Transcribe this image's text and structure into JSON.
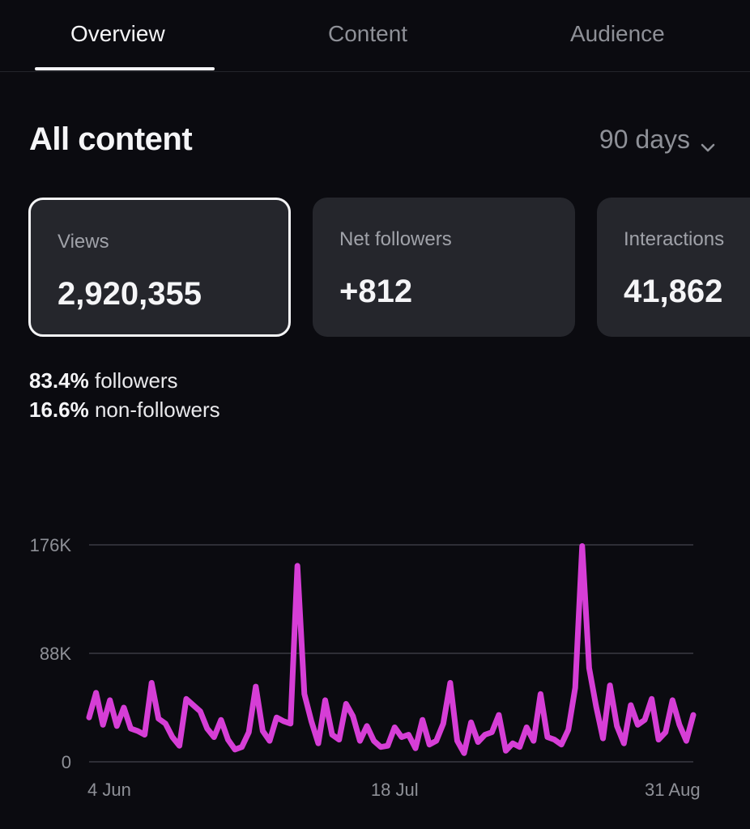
{
  "tabs": [
    {
      "label": "Overview",
      "active": true
    },
    {
      "label": "Content",
      "active": false
    },
    {
      "label": "Audience",
      "active": false
    }
  ],
  "section": {
    "title": "All content",
    "range_label": "90 days"
  },
  "cards": [
    {
      "label": "Views",
      "value": "2,920,355",
      "selected": true
    },
    {
      "label": "Net followers",
      "value": "+812",
      "selected": false
    },
    {
      "label": "Interactions",
      "value": "41,862",
      "selected": false
    }
  ],
  "breakdown": [
    {
      "percent": "83.4%",
      "label": "followers"
    },
    {
      "percent": "16.6%",
      "label": "non-followers"
    }
  ],
  "colors": {
    "line": "#d63ed6",
    "background": "#0b0b10",
    "card": "#25262c",
    "muted_text": "#8e9097",
    "gridline": "#3a3b42"
  },
  "chart_data": {
    "type": "line",
    "ytick_values": [
      0,
      88000,
      176000
    ],
    "ytick_labels": [
      "0",
      "88K",
      "176K"
    ],
    "ylim": [
      0,
      176000
    ],
    "xtick_labels": [
      "4 Jun",
      "18 Jul",
      "31 Aug"
    ],
    "xtick_positions": [
      0,
      44,
      88
    ],
    "grid": true,
    "series": [
      {
        "values": [
          36000,
          56000,
          30000,
          50000,
          29000,
          44000,
          27000,
          25000,
          22000,
          64000,
          35000,
          31000,
          20000,
          13000,
          51000,
          46000,
          41000,
          27000,
          20000,
          34000,
          18000,
          10000,
          12000,
          24000,
          61000,
          25000,
          17000,
          36000,
          33000,
          31000,
          159000,
          55000,
          33000,
          15000,
          50000,
          22000,
          18000,
          47000,
          37000,
          17000,
          29000,
          17000,
          12000,
          13000,
          28000,
          20000,
          22000,
          11000,
          34000,
          14000,
          17000,
          31000,
          64000,
          17000,
          7000,
          32000,
          16000,
          22000,
          24000,
          38000,
          9000,
          15000,
          12000,
          28000,
          17000,
          55000,
          20000,
          18000,
          14000,
          26000,
          60000,
          175000,
          76000,
          45000,
          19000,
          62000,
          29000,
          15000,
          46000,
          30000,
          34000,
          51000,
          18000,
          24000,
          50000,
          30000,
          17000,
          38000
        ]
      }
    ]
  }
}
